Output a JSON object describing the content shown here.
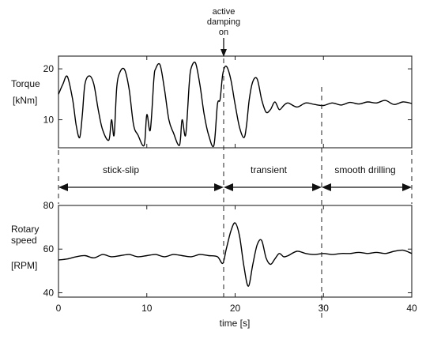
{
  "annotation": {
    "line1": "active",
    "line2": "damping",
    "line3": "on"
  },
  "phases": [
    "stick-slip",
    "transient",
    "smooth drilling"
  ],
  "chart_data": [
    {
      "type": "line",
      "ylabel_lines": [
        "Torque",
        "[kNm]"
      ],
      "xlim": [
        0,
        40
      ],
      "ylim": [
        4.5,
        22.5
      ],
      "yticks": [
        10,
        20
      ],
      "series": [
        {
          "x": [
            0,
            0.5,
            1,
            1.6,
            2,
            2.4,
            2.7,
            3,
            3.5,
            4,
            4.5,
            5,
            5.7,
            6,
            6.3,
            6.6,
            7,
            7.5,
            8,
            8.5,
            9,
            9.7,
            10,
            10.4,
            10.8,
            11,
            11.5,
            12,
            12.5,
            13,
            13.7,
            14,
            14.4,
            14.8,
            15,
            15.5,
            16,
            16.5,
            17,
            17.6,
            18,
            18.3,
            18.6,
            19,
            19.5,
            20,
            20.5,
            21,
            21.3,
            21.6,
            22,
            22.5,
            23,
            23.5,
            24,
            24.5,
            25,
            25.5,
            26,
            27,
            28,
            29,
            30,
            31,
            32,
            33,
            34,
            35,
            36,
            37,
            38,
            39,
            40
          ],
          "y": [
            15,
            17,
            18.5,
            14,
            9,
            6.5,
            11,
            17,
            18.6,
            17,
            12,
            8,
            6,
            10,
            7,
            16.5,
            19.5,
            19.8,
            16,
            9,
            7,
            5,
            11,
            8,
            18,
            20,
            20.8,
            16,
            10,
            7.5,
            5,
            10,
            7,
            17,
            20,
            21.2,
            17,
            11,
            7,
            5,
            13,
            14,
            19,
            20.5,
            18,
            13,
            8.5,
            6.5,
            9,
            14,
            17.5,
            18,
            14,
            11.5,
            12,
            13.5,
            12,
            12.8,
            13.3,
            12.5,
            13.3,
            13,
            12.8,
            13.3,
            12.9,
            13.4,
            13.1,
            13.5,
            13.3,
            13.8,
            13,
            13.5,
            13.2
          ]
        }
      ]
    },
    {
      "type": "line",
      "ylabel_lines": [
        "Rotary",
        "speed",
        "[RPM]"
      ],
      "xlabel": "time [s]",
      "xlim": [
        0,
        40
      ],
      "ylim": [
        38,
        80
      ],
      "xticks": [
        0,
        10,
        20,
        30,
        40
      ],
      "yticks": [
        40,
        60,
        80
      ],
      "series": [
        {
          "x": [
            0,
            1,
            2,
            3,
            4,
            5,
            6,
            7,
            8,
            9,
            10,
            11,
            12,
            13,
            14,
            15,
            16,
            17,
            18,
            18.6,
            19,
            19.5,
            20,
            20.5,
            21,
            21.5,
            22,
            22.5,
            23,
            23.5,
            24,
            24.5,
            25,
            25.5,
            26,
            27,
            28,
            29,
            30,
            31,
            32,
            33,
            34,
            35,
            36,
            37,
            38,
            39,
            40
          ],
          "y": [
            55,
            55.5,
            56.5,
            57,
            56,
            57.5,
            56.5,
            57,
            57.5,
            56.5,
            57,
            57.5,
            56.5,
            57.5,
            57,
            56.5,
            57.5,
            57,
            56.5,
            53.5,
            60,
            68,
            72,
            66,
            52,
            43,
            53,
            62,
            64,
            56,
            53,
            55.5,
            58,
            56.5,
            57,
            59,
            58,
            57.5,
            58,
            57.5,
            58,
            58,
            58.5,
            58,
            58.5,
            58,
            59,
            59.5,
            58
          ]
        }
      ]
    }
  ]
}
